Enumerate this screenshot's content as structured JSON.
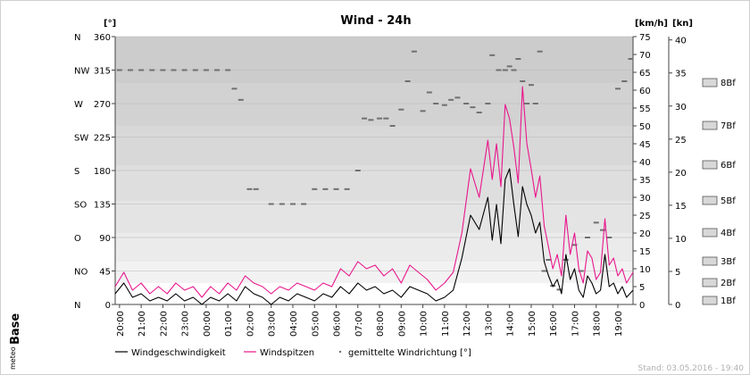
{
  "chart_data": {
    "type": "line",
    "title": "Wind - 24h",
    "left_unit": "[°]",
    "right_unit_kmh": "[km/h]",
    "right_unit_kn": "[kn]",
    "direction_ticks": [
      {
        "label": "N",
        "value": "0",
        "deg": 0
      },
      {
        "label": "NO",
        "value": "45",
        "deg": 45
      },
      {
        "label": "O",
        "value": "90",
        "deg": 90
      },
      {
        "label": "SO",
        "value": "135",
        "deg": 135
      },
      {
        "label": "S",
        "value": "180",
        "deg": 180
      },
      {
        "label": "SW",
        "value": "225",
        "deg": 225
      },
      {
        "label": "W",
        "value": "270",
        "deg": 270
      },
      {
        "label": "NW",
        "value": "315",
        "deg": 315
      },
      {
        "label": "N",
        "value": "360",
        "deg": 360
      }
    ],
    "kmh_ticks": [
      "0",
      "5",
      "10",
      "15",
      "20",
      "25",
      "30",
      "35",
      "40",
      "45",
      "50",
      "55",
      "60",
      "65",
      "70",
      "75"
    ],
    "kn_ticks": [
      "0",
      "5",
      "10",
      "15",
      "20",
      "25",
      "30",
      "35",
      "40"
    ],
    "beaufort": [
      {
        "label": "1Bf",
        "kmh": 1
      },
      {
        "label": "2Bf",
        "kmh": 6
      },
      {
        "label": "3Bf",
        "kmh": 12
      },
      {
        "label": "4Bf",
        "kmh": 20
      },
      {
        "label": "5Bf",
        "kmh": 29
      },
      {
        "label": "6Bf",
        "kmh": 39
      },
      {
        "label": "7Bf",
        "kmh": 50
      },
      {
        "label": "8Bf",
        "kmh": 62
      }
    ],
    "x_labels": [
      "20:00",
      "21:00",
      "22:00",
      "23:00",
      "00:00",
      "01:00",
      "02:00",
      "03:00",
      "04:00",
      "05:00",
      "06:00",
      "07:00",
      "08:00",
      "09:00",
      "10:00",
      "11:00",
      "12:00",
      "13:00",
      "14:00",
      "15:00",
      "16:00",
      "17:00",
      "18:00",
      "19:00"
    ],
    "x_range_hours": [
      19.8,
      43.7
    ],
    "y_range_kmh": [
      0,
      75
    ],
    "y_range_deg": [
      0,
      360
    ],
    "series": [
      {
        "name": "Windgeschwindigkeit",
        "color": "#000000",
        "hours": [
          19.8,
          20.2,
          20.6,
          21.0,
          21.4,
          21.8,
          22.2,
          22.6,
          23.0,
          23.4,
          23.8,
          24.2,
          24.6,
          25.0,
          25.4,
          25.8,
          26.2,
          26.6,
          27.0,
          27.4,
          27.8,
          28.2,
          28.6,
          29.0,
          29.4,
          29.8,
          30.2,
          30.6,
          31.0,
          31.4,
          31.8,
          32.2,
          32.6,
          33.0,
          33.4,
          33.8,
          34.2,
          34.6,
          35.0,
          35.4,
          35.8,
          36.2,
          36.6,
          37.0,
          37.2,
          37.4,
          37.6,
          37.8,
          38.0,
          38.2,
          38.4,
          38.6,
          38.8,
          39.0,
          39.2,
          39.4,
          39.6,
          39.8,
          40.0,
          40.2,
          40.4,
          40.6,
          40.8,
          41.0,
          41.2,
          41.4,
          41.6,
          41.8,
          42.0,
          42.2,
          42.4,
          42.6,
          42.8,
          43.0,
          43.2,
          43.4,
          43.7
        ],
        "values": [
          3,
          6,
          2,
          3,
          1,
          2,
          1,
          3,
          1,
          2,
          0,
          2,
          1,
          3,
          1,
          5,
          3,
          2,
          0,
          2,
          1,
          3,
          2,
          1,
          3,
          2,
          5,
          3,
          6,
          4,
          5,
          3,
          4,
          2,
          5,
          4,
          3,
          1,
          2,
          4,
          13,
          25,
          21,
          30,
          18,
          28,
          17,
          35,
          38,
          28,
          19,
          33,
          28,
          25,
          20,
          23,
          12,
          8,
          5,
          7,
          3,
          14,
          7,
          10,
          4,
          2,
          8,
          6,
          3,
          4,
          14,
          5,
          6,
          3,
          5,
          2,
          4
        ],
        "unit": "km/h"
      },
      {
        "name": "Windspitzen",
        "color": "#e8168c",
        "hours": [
          19.8,
          20.2,
          20.6,
          21.0,
          21.4,
          21.8,
          22.2,
          22.6,
          23.0,
          23.4,
          23.8,
          24.2,
          24.6,
          25.0,
          25.4,
          25.8,
          26.2,
          26.6,
          27.0,
          27.4,
          27.8,
          28.2,
          28.6,
          29.0,
          29.4,
          29.8,
          30.2,
          30.6,
          31.0,
          31.4,
          31.8,
          32.2,
          32.6,
          33.0,
          33.4,
          33.8,
          34.2,
          34.6,
          35.0,
          35.4,
          35.8,
          36.2,
          36.6,
          37.0,
          37.2,
          37.4,
          37.6,
          37.8,
          38.0,
          38.2,
          38.4,
          38.6,
          38.8,
          39.0,
          39.2,
          39.4,
          39.6,
          39.8,
          40.0,
          40.2,
          40.4,
          40.6,
          40.8,
          41.0,
          41.2,
          41.4,
          41.6,
          41.8,
          42.0,
          42.2,
          42.4,
          42.6,
          42.8,
          43.0,
          43.2,
          43.4,
          43.7
        ],
        "values": [
          5,
          9,
          4,
          6,
          3,
          5,
          3,
          6,
          4,
          5,
          2,
          5,
          3,
          6,
          4,
          8,
          6,
          5,
          3,
          5,
          4,
          6,
          5,
          4,
          6,
          5,
          10,
          8,
          12,
          10,
          11,
          8,
          10,
          6,
          11,
          9,
          7,
          4,
          6,
          9,
          20,
          38,
          30,
          46,
          35,
          45,
          33,
          56,
          52,
          44,
          34,
          61,
          45,
          38,
          30,
          36,
          22,
          16,
          10,
          14,
          8,
          25,
          14,
          20,
          10,
          6,
          15,
          13,
          7,
          9,
          24,
          11,
          13,
          8,
          10,
          6,
          9
        ],
        "unit": "km/h"
      },
      {
        "name": "gemittelte Windrichtung [°]",
        "color": "#707070",
        "hours": [
          20.0,
          20.5,
          21.0,
          21.5,
          22.0,
          22.5,
          23.0,
          23.5,
          24.0,
          24.5,
          25.0,
          25.3,
          25.6,
          26.0,
          26.3,
          27.0,
          27.5,
          28.0,
          28.5,
          29.0,
          29.5,
          30.0,
          30.5,
          31.0,
          31.3,
          31.6,
          32.0,
          32.3,
          32.6,
          33.0,
          33.3,
          33.6,
          34.0,
          34.3,
          34.6,
          35.0,
          35.3,
          35.6,
          36.0,
          36.3,
          36.6,
          37.0,
          37.2,
          37.5,
          37.8,
          38.0,
          38.2,
          38.4,
          38.6,
          38.8,
          39.0,
          39.2,
          39.4,
          39.6,
          39.8,
          40.0,
          40.3,
          40.6,
          41.0,
          41.3,
          41.6,
          42.0,
          42.3,
          42.6,
          43.0,
          43.3,
          43.6
        ],
        "values": [
          315,
          315,
          315,
          315,
          315,
          315,
          315,
          315,
          315,
          315,
          315,
          290,
          275,
          155,
          155,
          135,
          135,
          135,
          135,
          155,
          155,
          155,
          155,
          180,
          250,
          248,
          250,
          250,
          240,
          262,
          300,
          340,
          260,
          285,
          270,
          268,
          275,
          278,
          270,
          265,
          258,
          270,
          335,
          315,
          315,
          320,
          315,
          330,
          300,
          270,
          295,
          270,
          340,
          45,
          60,
          25,
          20,
          60,
          80,
          45,
          90,
          110,
          100,
          90,
          290,
          300,
          330
        ],
        "unit": "deg"
      }
    ]
  },
  "legend": {
    "speed": "Windgeschwindigkeit",
    "gust": "Windspitzen",
    "direction": "gemittelte Windrichtung [°]"
  },
  "footer": {
    "timestamp": "Stand: 03.05.2016 - 19:40",
    "brand_small": "meteo",
    "brand_large": "Base"
  }
}
